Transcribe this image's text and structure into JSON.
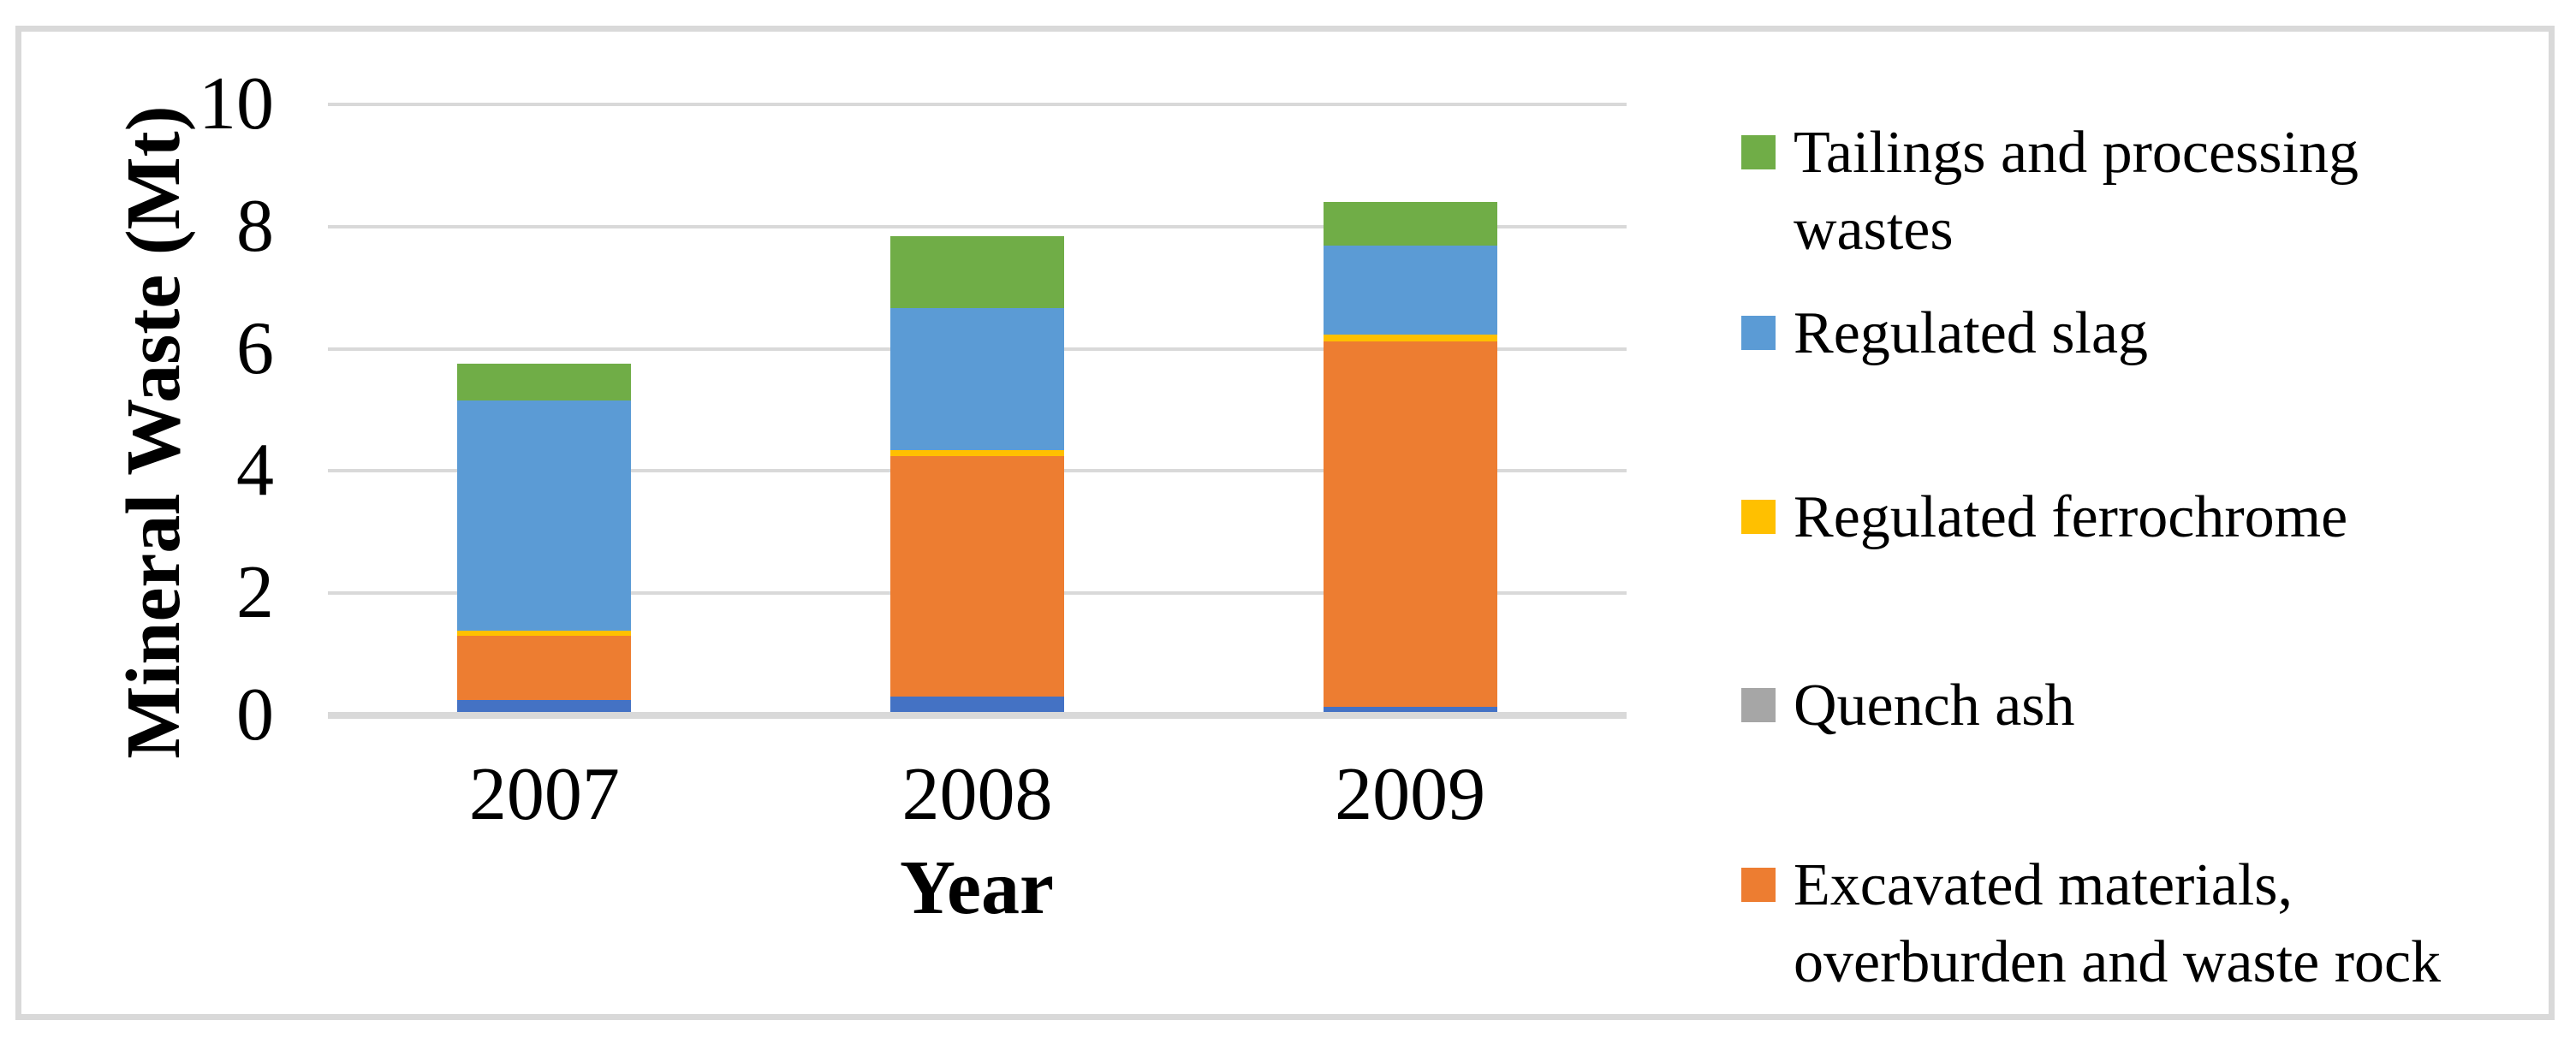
{
  "chart_data": {
    "type": "bar",
    "stacked": true,
    "title": "",
    "xlabel": "Year",
    "ylabel": "Mineral Waste (Mt)",
    "categories": [
      "2007",
      "2008",
      "2009"
    ],
    "ylim": [
      0,
      10
    ],
    "yticks": [
      0,
      2,
      4,
      6,
      8,
      10
    ],
    "grid": true,
    "legend_position": "right",
    "series": [
      {
        "name": "",
        "color": "#4472C4",
        "in_legend": false,
        "values": [
          0.2,
          0.25,
          0.08
        ]
      },
      {
        "name": "Excavated materials, overburden and waste rock",
        "color": "#ED7D31",
        "in_legend": true,
        "values": [
          1.05,
          3.94,
          5.98
        ]
      },
      {
        "name": "Quench ash",
        "color": "#A6A6A6",
        "in_legend": true,
        "values": [
          0,
          0,
          0
        ]
      },
      {
        "name": "Regulated ferrochrome",
        "color": "#FFC000",
        "in_legend": true,
        "values": [
          0.08,
          0.1,
          0.11
        ]
      },
      {
        "name": "Regulated slag",
        "color": "#5B9BD5",
        "in_legend": true,
        "values": [
          3.77,
          2.33,
          1.46
        ]
      },
      {
        "name": "Tailings and processing wastes",
        "color": "#70AD47",
        "in_legend": true,
        "values": [
          0.6,
          1.18,
          0.72
        ]
      }
    ],
    "legend": [
      {
        "label": "Tailings and processing wastes",
        "color": "#70AD47"
      },
      {
        "label": "Regulated slag",
        "color": "#5B9BD5"
      },
      {
        "label": "Regulated ferrochrome",
        "color": "#FFC000"
      },
      {
        "label": "Quench ash",
        "color": "#A6A6A6"
      },
      {
        "label": "Excavated materials, overburden and waste rock",
        "color": "#ED7D31"
      }
    ]
  },
  "colors": {
    "gridline": "#D9D9D9",
    "axis_line": "#D9D9D9",
    "frame_border": "#D9D9D9",
    "background": "#FFFFFF",
    "text": "#000000"
  }
}
